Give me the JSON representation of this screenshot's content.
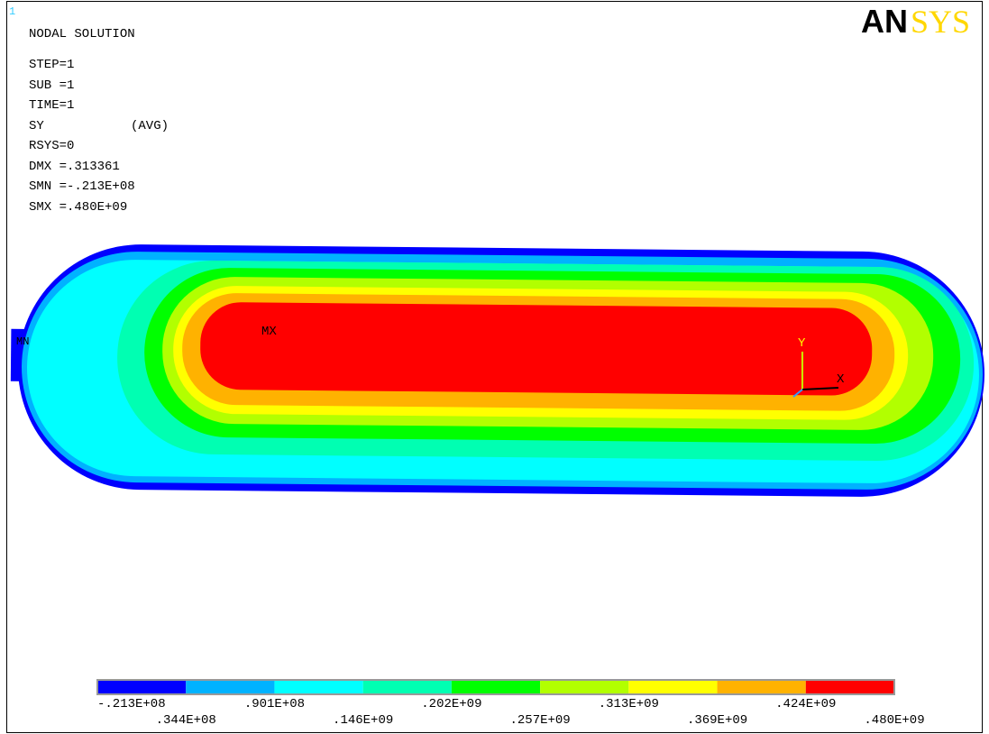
{
  "window_number": "1",
  "logo": {
    "part1": "AN",
    "part2": "SYS"
  },
  "info": [
    "NODAL SOLUTION",
    "STEP=1",
    "SUB =1",
    "TIME=1",
    "SY",
    "(AVG)",
    "RSYS=0",
    "DMX =.313361",
    "SMN =-.213E+08",
    "SMX =.480E+09"
  ],
  "markers": {
    "max": "MX",
    "min": "MN",
    "axis_y": "Y",
    "axis_x": "X"
  },
  "legend": {
    "colors": [
      "#0000ff",
      "#00b2ff",
      "#00ffff",
      "#00ffb2",
      "#00ff00",
      "#b2ff00",
      "#ffff00",
      "#ffb200",
      "#ff0000"
    ],
    "labels": [
      "-.213E+08",
      ".344E+08",
      ".901E+08",
      ".146E+09",
      ".202E+09",
      ".257E+09",
      ".313E+09",
      ".369E+09",
      ".424E+09",
      ".480E+09"
    ]
  }
}
